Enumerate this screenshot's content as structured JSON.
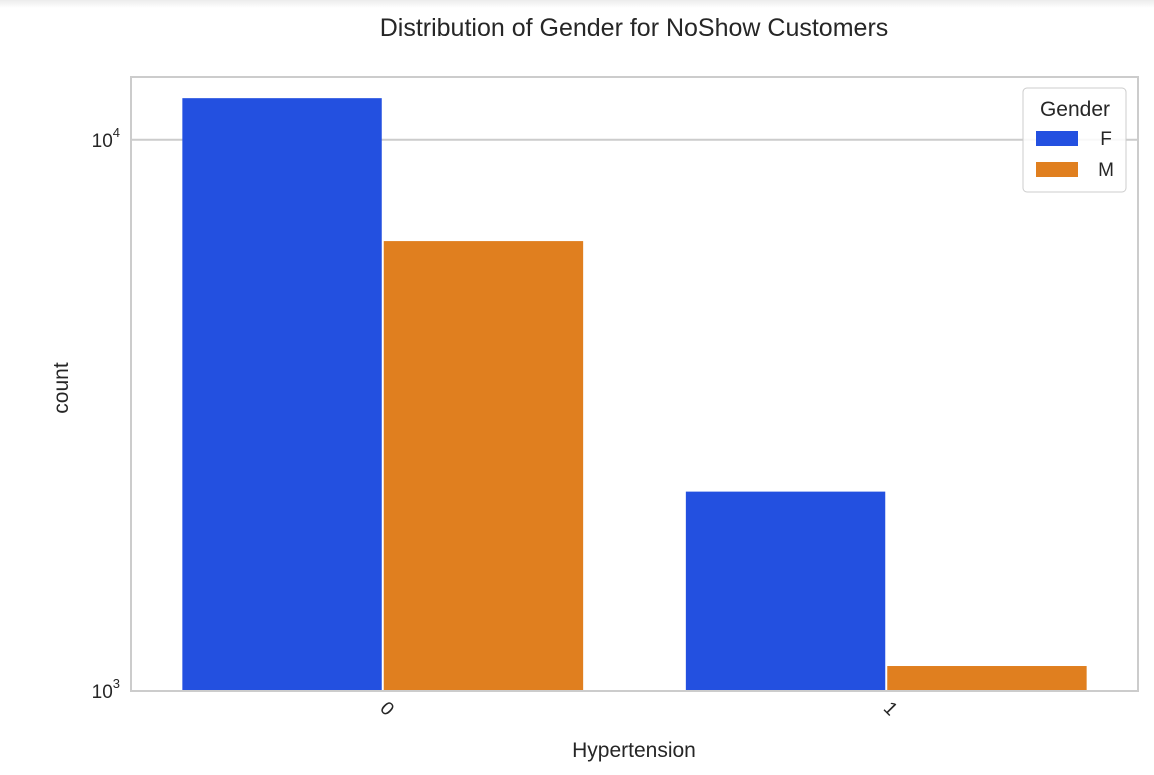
{
  "chart_data": {
    "type": "bar",
    "title": "Distribution of Gender for NoShow Customers",
    "xlabel": "Hypertension",
    "ylabel": "count",
    "yscale": "log",
    "ylim": [
      1000,
      13000
    ],
    "yticks": [
      {
        "value": 1000,
        "base": "10",
        "exp": "3"
      },
      {
        "value": 10000,
        "base": "10",
        "exp": "4"
      }
    ],
    "categories": [
      "0",
      "1"
    ],
    "series": [
      {
        "name": "F",
        "color": "#2350e0",
        "values": [
          11900,
          2300
        ]
      },
      {
        "name": "M",
        "color": "#e07f1f",
        "values": [
          6550,
          1110
        ]
      }
    ],
    "legend": {
      "title": "Gender",
      "placement": "top-right"
    },
    "grid": "horizontal"
  }
}
